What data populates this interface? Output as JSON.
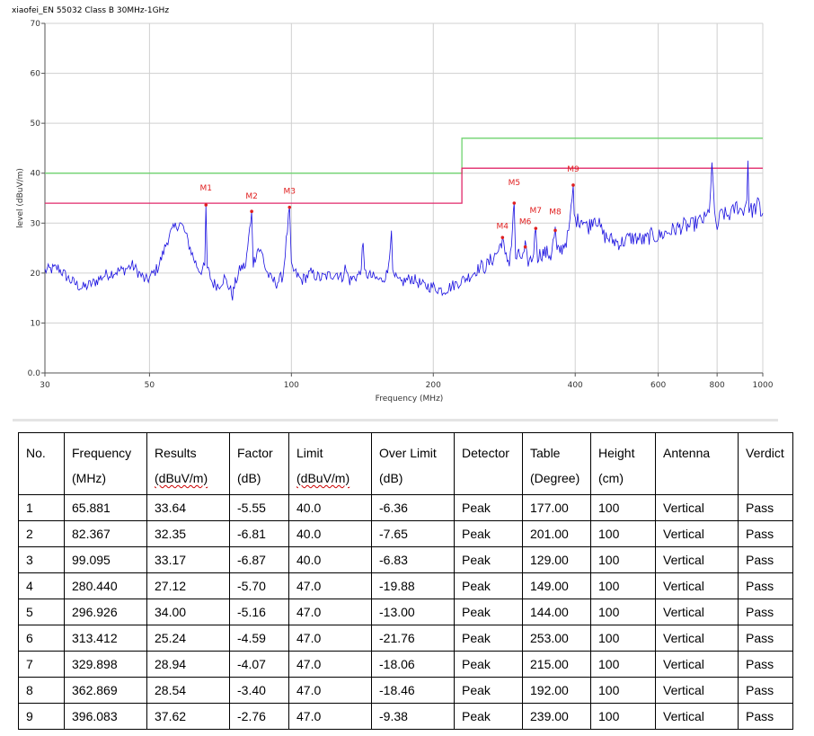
{
  "chart_data": {
    "type": "line",
    "title": "xiaofei_EN 55032 Class B 30MHz-1GHz",
    "xlabel": "Frequency (MHz)",
    "ylabel": "level (dBuV/m)",
    "x_scale": "log",
    "xlim": [
      30,
      1000
    ],
    "ylim": [
      0,
      70
    ],
    "x_ticks": [
      30,
      50,
      100,
      200,
      400,
      600,
      800,
      1000
    ],
    "y_ticks": [
      0,
      10,
      20,
      30,
      40,
      50,
      60,
      70
    ],
    "y_tick_labels": [
      "0.0",
      "10",
      "20",
      "30",
      "40",
      "50",
      "60",
      "70"
    ],
    "grid": true,
    "colors": {
      "trace": "#1a10e0",
      "limit": "#6fd36f",
      "margin": "#e0286a",
      "marker": "#e02020",
      "grid": "#d0d0d0"
    },
    "limit_line": [
      {
        "x": 30,
        "y": 40
      },
      {
        "x": 230,
        "y": 40
      },
      {
        "x": 230,
        "y": 47
      },
      {
        "x": 1000,
        "y": 47
      }
    ],
    "margin_line": [
      {
        "x": 30,
        "y": 34
      },
      {
        "x": 230,
        "y": 34
      },
      {
        "x": 230,
        "y": 41
      },
      {
        "x": 1000,
        "y": 41
      }
    ],
    "series": [
      {
        "values": [
          [
            30,
            20.5
          ],
          [
            32,
            21
          ],
          [
            34,
            18.5
          ],
          [
            36,
            17
          ],
          [
            38,
            18
          ],
          [
            40,
            19.5
          ],
          [
            42,
            20.2
          ],
          [
            44,
            20.6
          ],
          [
            46,
            21.5
          ],
          [
            48,
            19.5
          ],
          [
            49,
            18.5
          ],
          [
            50,
            19
          ],
          [
            52,
            21
          ],
          [
            53,
            23
          ],
          [
            55,
            27.5
          ],
          [
            57,
            29.5
          ],
          [
            58,
            30
          ],
          [
            59,
            29
          ],
          [
            60,
            27
          ],
          [
            62,
            23
          ],
          [
            63,
            21.5
          ],
          [
            64,
            20.5
          ],
          [
            65.5,
            21
          ],
          [
            65.881,
            33.6
          ],
          [
            66.3,
            21
          ],
          [
            68,
            18
          ],
          [
            70,
            17.5
          ],
          [
            72,
            19
          ],
          [
            74,
            17
          ],
          [
            75,
            15.5
          ],
          [
            76,
            18
          ],
          [
            78,
            21
          ],
          [
            80,
            21.5
          ],
          [
            82.367,
            32.3
          ],
          [
            83,
            22
          ],
          [
            85,
            25
          ],
          [
            87,
            23.5
          ],
          [
            88,
            21
          ],
          [
            90,
            19
          ],
          [
            93,
            18
          ],
          [
            96,
            19.5
          ],
          [
            99.095,
            33.2
          ],
          [
            100,
            21
          ],
          [
            105,
            18.5
          ],
          [
            110,
            20
          ],
          [
            115,
            19
          ],
          [
            120,
            19.5
          ],
          [
            125,
            20
          ],
          [
            128,
            19
          ],
          [
            130,
            21
          ],
          [
            133,
            18.5
          ],
          [
            135,
            19
          ],
          [
            140,
            19.8
          ],
          [
            142,
            26
          ],
          [
            143,
            20
          ],
          [
            150,
            19
          ],
          [
            155,
            18.5
          ],
          [
            160,
            20
          ],
          [
            163,
            28.5
          ],
          [
            164,
            19.5
          ],
          [
            170,
            18
          ],
          [
            180,
            19
          ],
          [
            190,
            17.5
          ],
          [
            200,
            17.2
          ],
          [
            210,
            16.5
          ],
          [
            220,
            17.5
          ],
          [
            230,
            18.5
          ],
          [
            240,
            19.5
          ],
          [
            250,
            21
          ],
          [
            260,
            21.5
          ],
          [
            270,
            23.5
          ],
          [
            275,
            24.5
          ],
          [
            280.44,
            27.1
          ],
          [
            284,
            23
          ],
          [
            290,
            22.5
          ],
          [
            293,
            26
          ],
          [
            296.926,
            34
          ],
          [
            299,
            23
          ],
          [
            305,
            23.5
          ],
          [
            310,
            23
          ],
          [
            313.412,
            25.2
          ],
          [
            316,
            22.5
          ],
          [
            320,
            22.5
          ],
          [
            325,
            23
          ],
          [
            329.898,
            28.9
          ],
          [
            333,
            23.5
          ],
          [
            340,
            24
          ],
          [
            350,
            24
          ],
          [
            355,
            23.5
          ],
          [
            362.869,
            28.5
          ],
          [
            366,
            24
          ],
          [
            375,
            25
          ],
          [
            385,
            27
          ],
          [
            390,
            30
          ],
          [
            396.083,
            37.6
          ],
          [
            398,
            31
          ],
          [
            405,
            30.5
          ],
          [
            415,
            31
          ],
          [
            425,
            29
          ],
          [
            440,
            31.5
          ],
          [
            460,
            27.5
          ],
          [
            480,
            26.5
          ],
          [
            500,
            26
          ],
          [
            520,
            27
          ],
          [
            540,
            27
          ],
          [
            560,
            26.5
          ],
          [
            580,
            27.5
          ],
          [
            600,
            27.3
          ],
          [
            620,
            28
          ],
          [
            640,
            28.5
          ],
          [
            660,
            29
          ],
          [
            680,
            29.5
          ],
          [
            700,
            29.3
          ],
          [
            720,
            30
          ],
          [
            740,
            30.5
          ],
          [
            760,
            31
          ],
          [
            770,
            33
          ],
          [
            775,
            37
          ],
          [
            780,
            41.5
          ],
          [
            785,
            38
          ],
          [
            790,
            31
          ],
          [
            800,
            29
          ],
          [
            810,
            31
          ],
          [
            820,
            32
          ],
          [
            840,
            31.5
          ],
          [
            860,
            32
          ],
          [
            880,
            33.5
          ],
          [
            900,
            32.5
          ],
          [
            915,
            33
          ],
          [
            925,
            35
          ],
          [
            930,
            42.5
          ],
          [
            935,
            33
          ],
          [
            950,
            32.5
          ],
          [
            965,
            33
          ],
          [
            980,
            34
          ],
          [
            990,
            32
          ],
          [
            1000,
            32
          ]
        ]
      }
    ],
    "markers": [
      {
        "label": "M1",
        "x": 65.881,
        "y": 33.64
      },
      {
        "label": "M2",
        "x": 82.367,
        "y": 32.35
      },
      {
        "label": "M3",
        "x": 99.095,
        "y": 33.17
      },
      {
        "label": "M4",
        "x": 280.44,
        "y": 27.12
      },
      {
        "label": "M5",
        "x": 296.926,
        "y": 34.0
      },
      {
        "label": "M6",
        "x": 313.412,
        "y": 25.24
      },
      {
        "label": "M7",
        "x": 329.898,
        "y": 28.94
      },
      {
        "label": "M8",
        "x": 362.869,
        "y": 28.54
      },
      {
        "label": "M9",
        "x": 396.083,
        "y": 37.62
      }
    ]
  },
  "table": {
    "headers": [
      {
        "top": "No.",
        "bottom": ""
      },
      {
        "top": "Frequency",
        "bottom": "(MHz)"
      },
      {
        "top": "Results",
        "bottom": "(dBuV/m)"
      },
      {
        "top": "Factor",
        "bottom": "(dB)"
      },
      {
        "top": "Limit",
        "bottom": "(dBuV/m)"
      },
      {
        "top": "Over Limit",
        "bottom": "(dB)"
      },
      {
        "top": "Detector",
        "bottom": ""
      },
      {
        "top": "Table",
        "bottom": "(Degree)"
      },
      {
        "top": "Height",
        "bottom": "(cm)"
      },
      {
        "top": "Antenna",
        "bottom": ""
      },
      {
        "top": "Verdict",
        "bottom": ""
      }
    ],
    "rows": [
      [
        "1",
        "65.881",
        "33.64",
        "-5.55",
        "40.0",
        "-6.36",
        "Peak",
        "177.00",
        "100",
        "Vertical",
        "Pass"
      ],
      [
        "2",
        "82.367",
        "32.35",
        "-6.81",
        "40.0",
        "-7.65",
        "Peak",
        "201.00",
        "100",
        "Vertical",
        "Pass"
      ],
      [
        "3",
        "99.095",
        "33.17",
        "-6.87",
        "40.0",
        "-6.83",
        "Peak",
        "129.00",
        "100",
        "Vertical",
        "Pass"
      ],
      [
        "4",
        "280.440",
        "27.12",
        "-5.70",
        "47.0",
        "-19.88",
        "Peak",
        "149.00",
        "100",
        "Vertical",
        "Pass"
      ],
      [
        "5",
        "296.926",
        "34.00",
        "-5.16",
        "47.0",
        "-13.00",
        "Peak",
        "144.00",
        "100",
        "Vertical",
        "Pass"
      ],
      [
        "6",
        "313.412",
        "25.24",
        "-4.59",
        "47.0",
        "-21.76",
        "Peak",
        "253.00",
        "100",
        "Vertical",
        "Pass"
      ],
      [
        "7",
        "329.898",
        "28.94",
        "-4.07",
        "47.0",
        "-18.06",
        "Peak",
        "215.00",
        "100",
        "Vertical",
        "Pass"
      ],
      [
        "8",
        "362.869",
        "28.54",
        "-3.40",
        "47.0",
        "-18.46",
        "Peak",
        "192.00",
        "100",
        "Vertical",
        "Pass"
      ],
      [
        "9",
        "396.083",
        "37.62",
        "-2.76",
        "47.0",
        "-9.38",
        "Peak",
        "239.00",
        "100",
        "Vertical",
        "Pass"
      ]
    ]
  }
}
